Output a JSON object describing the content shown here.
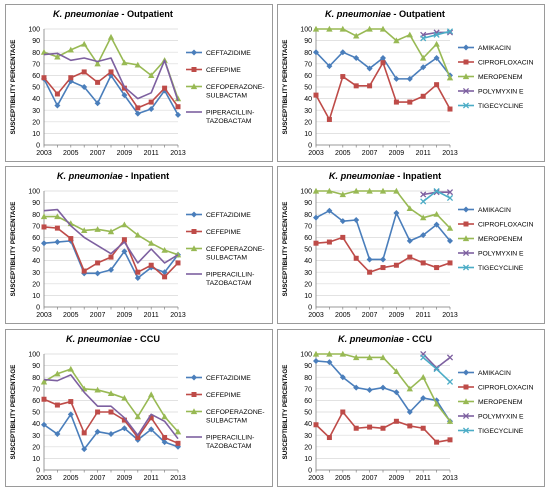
{
  "chart_data": [
    {
      "type": "line",
      "title_italic": "K. pneumoniae",
      "title_rest": " - Outpatient",
      "ylabel": "SUSCEPTIBILITY PERCENTAGE",
      "ylim": [
        0,
        100
      ],
      "yticks": [
        0,
        10,
        20,
        30,
        40,
        50,
        60,
        70,
        80,
        90,
        100
      ],
      "x": [
        2003,
        2004,
        2005,
        2006,
        2007,
        2008,
        2009,
        2010,
        2011,
        2012,
        2013
      ],
      "xtick_labels": [
        "2003",
        "2005",
        "2007",
        "2009",
        "2011",
        "2013"
      ],
      "series": [
        {
          "name": "CEFTAZIDIME",
          "color": "#4a7ebb",
          "marker": "diamond",
          "values": [
            57,
            34,
            55,
            50,
            36,
            60,
            43,
            27,
            31,
            47,
            26
          ]
        },
        {
          "name": "CEFEPIME",
          "color": "#be4b48",
          "marker": "square",
          "values": [
            58,
            44,
            58,
            63,
            54,
            63,
            49,
            32,
            37,
            49,
            33
          ]
        },
        {
          "name": "CEFOPERAZONE-SULBACTAM",
          "color": "#98b954",
          "marker": "triangle",
          "values": [
            80,
            76,
            82,
            87,
            70,
            93,
            71,
            69,
            60,
            73,
            40
          ]
        },
        {
          "name": "PIPERACILLIN-TAZOBACTAM",
          "color": "#7d60a0",
          "marker": "none",
          "values": [
            78,
            79,
            73,
            75,
            72,
            75,
            50,
            40,
            45,
            73,
            38
          ]
        }
      ],
      "legend_labels": [
        [
          "CEFTAZIDIME"
        ],
        [
          "CEFEPIME"
        ],
        [
          "CEFOPERAZONE-",
          "SULBACTAM"
        ],
        [
          "PIPERACILLIN-",
          "TAZOBACTAM"
        ]
      ]
    },
    {
      "type": "line",
      "title_italic": "K. pneumoniae",
      "title_rest": " - Outpatient",
      "ylabel": "SUSCEPTIBILITY PERCENTAGE",
      "ylim": [
        0,
        100
      ],
      "yticks": [
        0,
        10,
        20,
        30,
        40,
        50,
        60,
        70,
        80,
        90,
        100
      ],
      "x": [
        2003,
        2004,
        2005,
        2006,
        2007,
        2008,
        2009,
        2010,
        2011,
        2012,
        2013
      ],
      "xtick_labels": [
        "2003",
        "2005",
        "2007",
        "2009",
        "2011",
        "2013"
      ],
      "series": [
        {
          "name": "AMIKACIN",
          "color": "#4a7ebb",
          "marker": "diamond",
          "values": [
            80,
            68,
            80,
            75,
            66,
            75,
            57,
            57,
            67,
            75,
            60
          ]
        },
        {
          "name": "CIPROFLOXACIN",
          "color": "#be4b48",
          "marker": "square",
          "values": [
            43,
            22,
            59,
            51,
            51,
            71,
            37,
            37,
            42,
            52,
            31
          ]
        },
        {
          "name": "MEROPENEM",
          "color": "#98b954",
          "marker": "triangle",
          "values": [
            100,
            100,
            100,
            94,
            100,
            100,
            90,
            95,
            75,
            87,
            58
          ]
        },
        {
          "name": "POLYMYXIN E",
          "color": "#7d60a0",
          "marker": "x",
          "values": [
            null,
            null,
            null,
            null,
            null,
            null,
            null,
            null,
            95,
            97,
            97
          ]
        },
        {
          "name": "TIGECYCLINE",
          "color": "#4bacc6",
          "marker": "x",
          "values": [
            null,
            null,
            null,
            null,
            null,
            null,
            null,
            null,
            92,
            95,
            98
          ]
        }
      ],
      "legend_labels": [
        [
          "AMIKACIN"
        ],
        [
          "CIPROFLOXACIN"
        ],
        [
          "MEROPENEM"
        ],
        [
          "POLYMYXIN E"
        ],
        [
          "TIGECYCLINE"
        ]
      ]
    },
    {
      "type": "line",
      "title_italic": "K. pneumoniae",
      "title_rest": " - Inpatient",
      "ylabel": "SUSCEPTIBILITY PERCENTAGE",
      "ylim": [
        0,
        100
      ],
      "yticks": [
        0,
        10,
        20,
        30,
        40,
        50,
        60,
        70,
        80,
        90,
        100
      ],
      "x": [
        2003,
        2004,
        2005,
        2006,
        2007,
        2008,
        2009,
        2010,
        2011,
        2012,
        2013
      ],
      "xtick_labels": [
        "2003",
        "2005",
        "2007",
        "2009",
        "2011",
        "2013"
      ],
      "series": [
        {
          "name": "CEFTAZIDIME",
          "color": "#4a7ebb",
          "marker": "diamond",
          "values": [
            55,
            56,
            57,
            29,
            29,
            32,
            48,
            25,
            34,
            30,
            45
          ]
        },
        {
          "name": "CEFEPIME",
          "color": "#be4b48",
          "marker": "square",
          "values": [
            69,
            68,
            59,
            31,
            38,
            43,
            58,
            30,
            36,
            26,
            38
          ]
        },
        {
          "name": "CEFOPERAZONE-SULBACTAM",
          "color": "#98b954",
          "marker": "triangle",
          "values": [
            78,
            78,
            72,
            66,
            67,
            65,
            71,
            62,
            55,
            49,
            45
          ]
        },
        {
          "name": "PIPERACILLIN-TAZOBACTAM",
          "color": "#7d60a0",
          "marker": "none",
          "values": [
            83,
            84,
            70,
            60,
            53,
            46,
            56,
            38,
            50,
            38,
            45
          ]
        }
      ],
      "legend_labels": [
        [
          "CEFTAZIDIME"
        ],
        [
          "CEFEPIME"
        ],
        [
          "CEFOPERAZONE-",
          "SULBACTAM"
        ],
        [
          "PIPERACILLIN-",
          "TAZOBACTAM"
        ]
      ]
    },
    {
      "type": "line",
      "title_italic": "K. pneumoniae",
      "title_rest": " - Inpatient",
      "ylabel": "SUSCEPTIBILITY PERCENTAGE",
      "ylim": [
        0,
        100
      ],
      "yticks": [
        0,
        10,
        20,
        30,
        40,
        50,
        60,
        70,
        80,
        90,
        100
      ],
      "x": [
        2003,
        2004,
        2005,
        2006,
        2007,
        2008,
        2009,
        2010,
        2011,
        2012,
        2013
      ],
      "xtick_labels": [
        "2003",
        "2005",
        "2007",
        "2009",
        "2011",
        "2013"
      ],
      "series": [
        {
          "name": "AMIKACIN",
          "color": "#4a7ebb",
          "marker": "diamond",
          "values": [
            77,
            83,
            74,
            75,
            41,
            41,
            81,
            57,
            62,
            71,
            57
          ]
        },
        {
          "name": "CIPROFLOXACIN",
          "color": "#be4b48",
          "marker": "square",
          "values": [
            55,
            56,
            60,
            42,
            30,
            34,
            36,
            43,
            38,
            34,
            38
          ]
        },
        {
          "name": "MEROPENEM",
          "color": "#98b954",
          "marker": "triangle",
          "values": [
            100,
            100,
            97,
            100,
            100,
            100,
            100,
            85,
            77,
            80,
            68
          ]
        },
        {
          "name": "POLYMYXIN E",
          "color": "#7d60a0",
          "marker": "x",
          "values": [
            null,
            null,
            null,
            null,
            null,
            null,
            null,
            null,
            97,
            99,
            99
          ]
        },
        {
          "name": "TIGECYCLINE",
          "color": "#4bacc6",
          "marker": "x",
          "values": [
            null,
            null,
            null,
            null,
            null,
            null,
            null,
            null,
            91,
            100,
            94
          ]
        }
      ],
      "legend_labels": [
        [
          "AMIKACIN"
        ],
        [
          "CIPROFLOXACIN"
        ],
        [
          "MEROPENEM"
        ],
        [
          "POLYMYXIN E"
        ],
        [
          "TIGECYCLINE"
        ]
      ]
    },
    {
      "type": "line",
      "title_italic": "K. pneumoniae",
      "title_rest": " - CCU",
      "ylabel": "SUSCEPTIBILITY PERCENTAGE",
      "ylim": [
        0,
        100
      ],
      "yticks": [
        0,
        10,
        20,
        30,
        40,
        50,
        60,
        70,
        80,
        90,
        100
      ],
      "x": [
        2003,
        2004,
        2005,
        2006,
        2007,
        2008,
        2009,
        2010,
        2011,
        2012,
        2013
      ],
      "xtick_labels": [
        "2003",
        "2005",
        "2007",
        "2009",
        "2011",
        "2013"
      ],
      "series": [
        {
          "name": "CEFTAZIDIME",
          "color": "#4a7ebb",
          "marker": "diamond",
          "values": [
            39,
            31,
            48,
            18,
            33,
            31,
            36,
            26,
            35,
            24,
            20
          ]
        },
        {
          "name": "CEFEPIME",
          "color": "#be4b48",
          "marker": "square",
          "values": [
            61,
            56,
            59,
            32,
            50,
            50,
            43,
            28,
            45,
            28,
            23
          ]
        },
        {
          "name": "CEFOPERAZONE-SULBACTAM",
          "color": "#98b954",
          "marker": "triangle",
          "values": [
            76,
            83,
            87,
            70,
            69,
            66,
            62,
            46,
            65,
            46,
            33
          ]
        },
        {
          "name": "PIPERACILLIN-TAZOBACTAM",
          "color": "#7d60a0",
          "marker": "none",
          "values": [
            78,
            77,
            82,
            67,
            55,
            55,
            45,
            30,
            48,
            42,
            27
          ]
        }
      ],
      "legend_labels": [
        [
          "CEFTAZIDIME"
        ],
        [
          "CEFEPIME"
        ],
        [
          "CEFOPERAZONE-",
          "SULBACTAM"
        ],
        [
          "PIPERACILLIN-",
          "TAZOBACTAM"
        ]
      ]
    },
    {
      "type": "line",
      "title_italic": "K. pneumoniae",
      "title_rest": " - CCU",
      "ylabel": "SUSCEPTIBILITY PERCENTAGE",
      "ylim": [
        0,
        100
      ],
      "yticks": [
        0,
        10,
        20,
        30,
        40,
        50,
        60,
        70,
        80,
        90,
        100
      ],
      "x": [
        2003,
        2004,
        2005,
        2006,
        2007,
        2008,
        2009,
        2010,
        2011,
        2012,
        2013
      ],
      "xtick_labels": [
        "2003",
        "2005",
        "2007",
        "2009",
        "2011",
        "2013"
      ],
      "series": [
        {
          "name": "AMIKACIN",
          "color": "#4a7ebb",
          "marker": "diamond",
          "values": [
            94,
            93,
            80,
            71,
            69,
            71,
            67,
            50,
            62,
            60,
            42
          ]
        },
        {
          "name": "CIPROFLOXACIN",
          "color": "#be4b48",
          "marker": "square",
          "values": [
            39,
            28,
            50,
            36,
            37,
            36,
            42,
            38,
            36,
            24,
            26
          ]
        },
        {
          "name": "MEROPENEM",
          "color": "#98b954",
          "marker": "triangle",
          "values": [
            100,
            100,
            100,
            97,
            97,
            97,
            85,
            70,
            80,
            57,
            42
          ]
        },
        {
          "name": "POLYMYXIN E",
          "color": "#7d60a0",
          "marker": "x",
          "values": [
            null,
            null,
            null,
            null,
            null,
            null,
            null,
            null,
            100,
            88,
            97
          ]
        },
        {
          "name": "TIGECYCLINE",
          "color": "#4bacc6",
          "marker": "x",
          "values": [
            null,
            null,
            null,
            null,
            null,
            null,
            null,
            null,
            97,
            87,
            76
          ]
        }
      ],
      "legend_labels": [
        [
          "AMIKACIN"
        ],
        [
          "CIPROFLOXACIN"
        ],
        [
          "MEROPENEM"
        ],
        [
          "POLYMYXIN E"
        ],
        [
          "TIGECYCLINE"
        ]
      ]
    }
  ]
}
